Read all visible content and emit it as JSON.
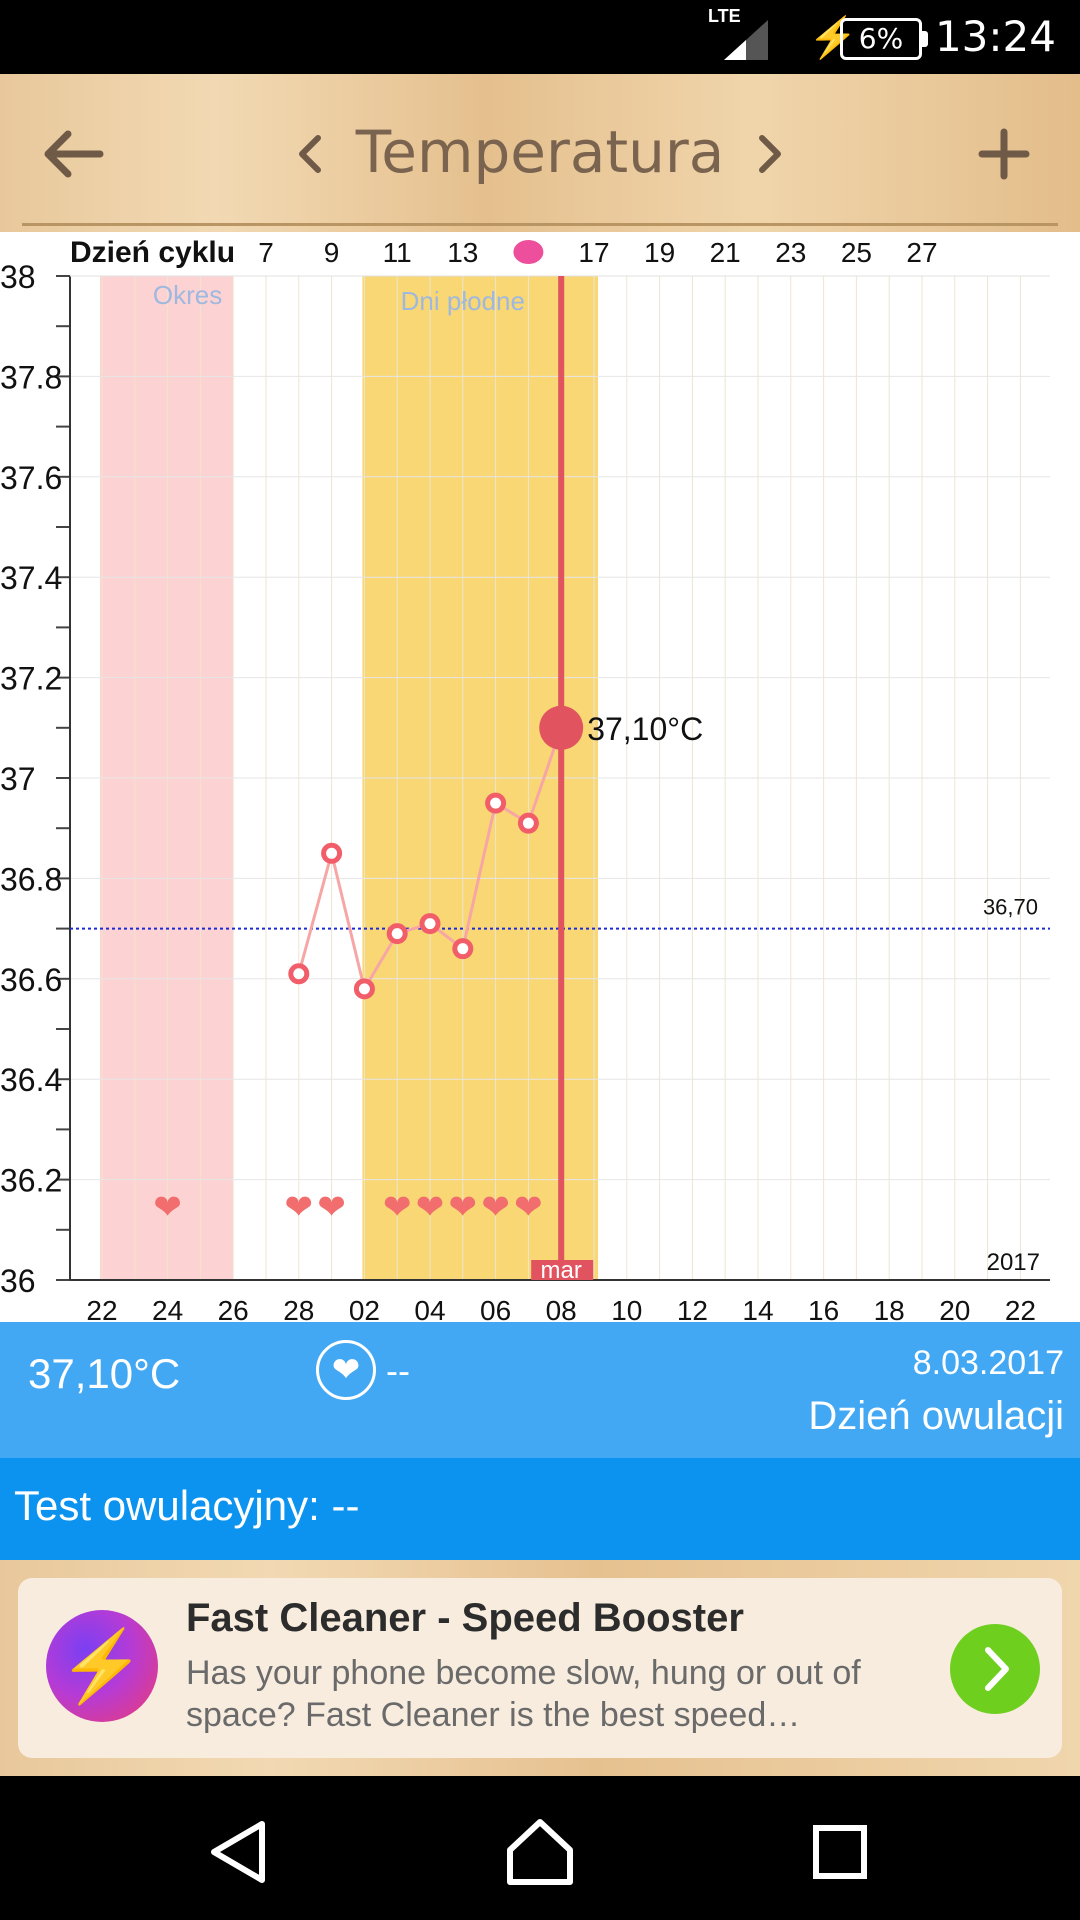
{
  "status_bar": {
    "time": "13:24",
    "battery": "6%",
    "network": "LTE"
  },
  "app_bar": {
    "title": "Temperatura",
    "back_icon": "arrow-left-icon",
    "prev_icon": "chevron-left-icon",
    "next_icon": "chevron-right-icon",
    "add_icon": "plus-icon"
  },
  "chart": {
    "cycle_label": "Dzień cyklu",
    "cycle_ticks": [
      "7",
      "9",
      "11",
      "13",
      "",
      "17",
      "19",
      "21",
      "23",
      "25",
      "27"
    ],
    "y_ticks": [
      "38",
      "37.8",
      "37.6",
      "37.4",
      "37.2",
      "37",
      "36.8",
      "36.6",
      "36.4",
      "36.2",
      "36"
    ],
    "x_ticks": [
      "22",
      "24",
      "26",
      "28",
      "02",
      "04",
      "06",
      "08",
      "10",
      "12",
      "14",
      "16",
      "18",
      "20",
      "22"
    ],
    "period_label": "Okres",
    "fertile_label": "Dni płodne",
    "baseline_label": "36,70",
    "baseline_value": 36.7,
    "selected_label": "37,10°C",
    "month_label": "mar",
    "year_label": "2017",
    "temperatures": [
      {
        "date": "28",
        "value": 36.61
      },
      {
        "date": "01",
        "value": 36.85
      },
      {
        "date": "02",
        "value": 36.58
      },
      {
        "date": "03",
        "value": 36.69
      },
      {
        "date": "04",
        "value": 36.71
      },
      {
        "date": "05",
        "value": 36.66
      },
      {
        "date": "06",
        "value": 36.95
      },
      {
        "date": "07",
        "value": 36.91
      },
      {
        "date": "08",
        "value": 37.1
      }
    ],
    "hearts": [
      "24",
      "28",
      "01",
      "03",
      "04",
      "05",
      "06",
      "07"
    ],
    "colors": {
      "period": "#fdd2d2",
      "fertile": "#f8d774",
      "line": "#e0535f",
      "baseline": "#1c2ad6"
    }
  },
  "info": {
    "temperature": "37,10°C",
    "heart_icon": "heart-icon",
    "intercourse": "--",
    "date": "8.03.2017",
    "day_status": "Dzień owulacji"
  },
  "test": {
    "label": "Test owulacyjny:  --"
  },
  "ad": {
    "icon": "lightning-icon",
    "title": "Fast Cleaner - Speed Booster",
    "text": "Has your phone become slow, hung or out of space? Fast Cleaner is the best speed…",
    "go_icon": "chevron-right-icon"
  },
  "nav_bar": {
    "back_icon": "back-triangle-icon",
    "home_icon": "home-icon",
    "recents_icon": "recents-square-icon"
  }
}
